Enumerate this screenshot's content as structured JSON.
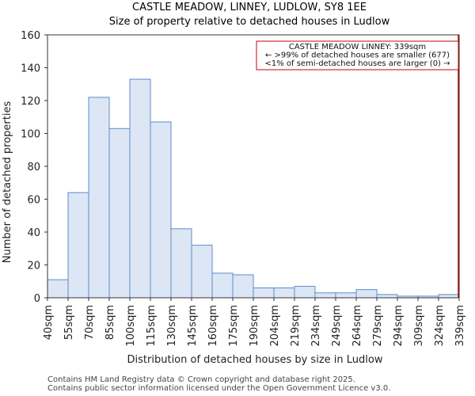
{
  "chart_data": {
    "type": "bar",
    "title": "CASTLE MEADOW, LINNEY, LUDLOW, SY8 1EE",
    "subtitle": "Size of property relative to detached houses in Ludlow",
    "xlabel": "Distribution of detached houses by size in Ludlow",
    "ylabel": "Number of detached properties",
    "ylim": [
      0,
      160
    ],
    "yticks": [
      0,
      20,
      40,
      60,
      80,
      100,
      120,
      140,
      160
    ],
    "bin_edges": [
      40,
      55,
      70,
      85,
      100,
      115,
      130,
      145,
      160,
      175,
      190,
      204,
      219,
      234,
      249,
      264,
      279,
      294,
      309,
      324,
      339
    ],
    "tick_labels": [
      "40sqm",
      "55sqm",
      "70sqm",
      "85sqm",
      "100sqm",
      "115sqm",
      "130sqm",
      "145sqm",
      "160sqm",
      "175sqm",
      "190sqm",
      "204sqm",
      "219sqm",
      "234sqm",
      "249sqm",
      "264sqm",
      "279sqm",
      "294sqm",
      "309sqm",
      "324sqm",
      "339sqm"
    ],
    "values": [
      11,
      64,
      122,
      103,
      133,
      107,
      42,
      32,
      15,
      14,
      6,
      6,
      7,
      3,
      3,
      5,
      2,
      1,
      1,
      2
    ],
    "bar_fill": "#dce6f4",
    "bar_stroke": "#5b8ccc",
    "marker": {
      "value": 339,
      "color": "#cc0000"
    },
    "annotation": {
      "lines": [
        "CASTLE MEADOW LINNEY: 339sqm",
        "← >99% of detached houses are smaller (677)",
        "<1% of semi-detached houses are larger (0) →"
      ]
    }
  },
  "footer": {
    "line1": "Contains HM Land Registry data © Crown copyright and database right 2025.",
    "line2": "Contains public sector information licensed under the Open Government Licence v3.0."
  }
}
